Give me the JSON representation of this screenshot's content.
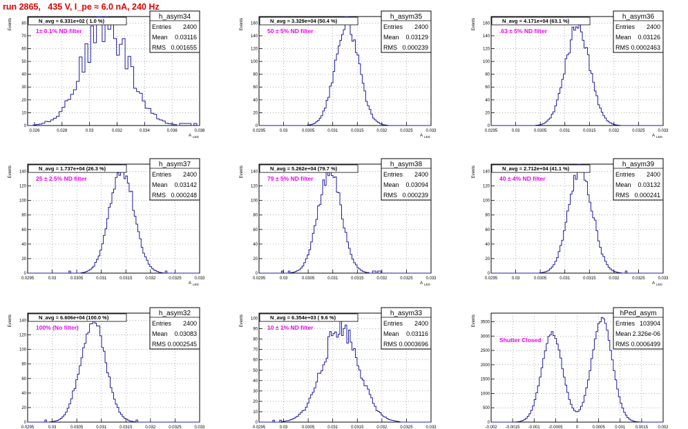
{
  "header": "run 2865,   435 V, I_pe ≈ 6.0 nA, 240 Hz",
  "panel_order": [
    "row-major",
    3,
    3
  ],
  "chart_data": [
    {
      "type": "histogram",
      "name": "h_asym34",
      "ylabel": "Events",
      "xlabel": "A",
      "xlabel_sub": "LED",
      "xlim": [
        0.0255,
        0.038
      ],
      "ylim": [
        0,
        85
      ],
      "xticks": [
        "0.026",
        "0.028",
        "0.03",
        "0.032",
        "0.034",
        "0.036",
        "0.038"
      ],
      "xtickvals": [
        0.026,
        0.028,
        0.03,
        0.032,
        0.034,
        0.036,
        0.038
      ],
      "yticks": [
        0,
        10,
        20,
        30,
        40,
        50,
        60,
        70,
        80
      ],
      "stats": {
        "Entries": "2400",
        "Mean": "0.03116",
        "RMS": "0.001655"
      },
      "navg": "N_avg = 6.331e+02 ( 1.0 %)",
      "filter_label": "1± 0.1% ND filter",
      "mean": 0.03116,
      "sigma": 0.001655,
      "peak": 80,
      "noise": 0.22,
      "seed": 34,
      "bins": 60
    },
    {
      "type": "histogram",
      "name": "h_asym35",
      "ylabel": "Events",
      "xlabel": "A",
      "xlabel_sub": "LED",
      "xlim": [
        0.0295,
        0.033
      ],
      "ylim": [
        0,
        170
      ],
      "xticks": [
        "0.0295",
        "0.03",
        "0.0305",
        "0.031",
        "0.0315",
        "0.032",
        "0.0325",
        "0.033"
      ],
      "xtickvals": [
        0.0295,
        0.03,
        0.0305,
        0.031,
        0.0315,
        0.032,
        0.0325,
        0.033
      ],
      "yticks": [
        0,
        20,
        40,
        60,
        80,
        100,
        120,
        140,
        160
      ],
      "stats": {
        "Entries": "2400",
        "Mean": "0.03129",
        "RMS": "0.000239"
      },
      "navg": "N_avg = 3.329e+04 (50.4 %)",
      "filter_label": "50 ± 5% ND filter",
      "mean": 0.03129,
      "sigma": 0.000239,
      "peak": 160,
      "noise": 0.08,
      "seed": 35,
      "bins": 100
    },
    {
      "type": "histogram",
      "name": "h_asym36",
      "ylabel": "Events",
      "xlabel": "A",
      "xlabel_sub": "LED",
      "xlim": [
        0.0295,
        0.033
      ],
      "ylim": [
        0,
        170
      ],
      "xticks": [
        "0.0295",
        "0.03",
        "0.0305",
        "0.031",
        "0.0315",
        "0.032",
        "0.0325",
        "0.033"
      ],
      "xtickvals": [
        0.0295,
        0.03,
        0.0305,
        0.031,
        0.0315,
        0.032,
        0.0325,
        0.033
      ],
      "yticks": [
        0,
        20,
        40,
        60,
        80,
        100,
        120,
        140,
        160
      ],
      "stats": {
        "Entries": "2400",
        "Mean": "0.03126",
        "RMS": "0.0002463"
      },
      "navg": "N_avg = 4.171e+04 (63.1 %)",
      "filter_label": ".63 ± 5% ND filter",
      "mean": 0.03126,
      "sigma": 0.0002463,
      "peak": 155,
      "noise": 0.08,
      "seed": 36,
      "bins": 100
    },
    {
      "type": "histogram",
      "name": "h_asym37",
      "ylabel": "Events",
      "xlabel": "A",
      "xlabel_sub": "LED",
      "xlim": [
        0.0295,
        0.033
      ],
      "ylim": [
        0,
        150
      ],
      "xticks": [
        "0.0295",
        "0.03",
        "0.0305",
        "0.031",
        "0.0315",
        "0.032",
        "0.0325",
        "0.033"
      ],
      "xtickvals": [
        0.0295,
        0.03,
        0.0305,
        0.031,
        0.0315,
        0.032,
        0.0325,
        0.033
      ],
      "yticks": [
        0,
        20,
        40,
        60,
        80,
        100,
        120,
        140
      ],
      "stats": {
        "Entries": "2400",
        "Mean": "0.03142",
        "RMS": "0.000248"
      },
      "navg": "N_avg = 1.737e+04 (26.3 %)",
      "filter_label": "25 ± 2.5% ND filter",
      "mean": 0.03142,
      "sigma": 0.000248,
      "peak": 145,
      "noise": 0.08,
      "seed": 37,
      "bins": 100
    },
    {
      "type": "histogram",
      "name": "h_asym38",
      "ylabel": "Events",
      "xlabel": "A",
      "xlabel_sub": "LED",
      "xlim": [
        0.0295,
        0.033
      ],
      "ylim": [
        0,
        150
      ],
      "xticks": [
        "0.0295",
        "0.03",
        "0.0305",
        "0.031",
        "0.0315",
        "0.032",
        "0.0325",
        "0.033"
      ],
      "xtickvals": [
        0.0295,
        0.03,
        0.0305,
        0.031,
        0.0315,
        0.032,
        0.0325,
        0.033
      ],
      "yticks": [
        0,
        20,
        40,
        60,
        80,
        100,
        120,
        140
      ],
      "stats": {
        "Entries": "2400",
        "Mean": "0.03094",
        "RMS": "0.000239"
      },
      "navg": "N_avg = 5.262e+04 (79.7 %)",
      "filter_label": "79 ± 5% ND filter",
      "mean": 0.03094,
      "sigma": 0.000239,
      "peak": 140,
      "noise": 0.08,
      "seed": 38,
      "bins": 100
    },
    {
      "type": "histogram",
      "name": "h_asym39",
      "ylabel": "Events",
      "xlabel": "A",
      "xlabel_sub": "LED",
      "xlim": [
        0.0295,
        0.033
      ],
      "ylim": [
        0,
        150
      ],
      "xticks": [
        "0.0295",
        "0.03",
        "0.0305",
        "0.031",
        "0.0315",
        "0.032",
        "0.0325",
        "0.033"
      ],
      "xtickvals": [
        0.0295,
        0.03,
        0.0305,
        0.031,
        0.0315,
        0.032,
        0.0325,
        0.033
      ],
      "yticks": [
        0,
        20,
        40,
        60,
        80,
        100,
        120,
        140
      ],
      "stats": {
        "Entries": "2400",
        "Mean": "0.03132",
        "RMS": "0.000241"
      },
      "navg": "N_avg = 2.712e+04 (41.1 %)",
      "filter_label": "40 ± 4% ND filter",
      "mean": 0.03132,
      "sigma": 0.000241,
      "peak": 145,
      "noise": 0.08,
      "seed": 39,
      "bins": 100
    },
    {
      "type": "histogram",
      "name": "h_asym32",
      "ylabel": "Events",
      "xlabel": "A",
      "xlabel_sub": "LED",
      "xlim": [
        0.0295,
        0.033
      ],
      "ylim": [
        0,
        150
      ],
      "xticks": [
        "0.0295",
        "0.03",
        "0.0305",
        "0.031",
        "0.0315",
        "0.032",
        "0.0325",
        "0.033"
      ],
      "xtickvals": [
        0.0295,
        0.03,
        0.0305,
        0.031,
        0.0315,
        0.032,
        0.0325,
        0.033
      ],
      "yticks": [
        0,
        20,
        40,
        60,
        80,
        100,
        120,
        140
      ],
      "stats": {
        "Entries": "2400",
        "Mean": "0.03083",
        "RMS": "0.0002545"
      },
      "navg": "N_avg = 6.606e+04 (100.0 %)",
      "filter_label": "100% (No filter)",
      "mean": 0.03083,
      "sigma": 0.0002545,
      "peak": 140,
      "noise": 0.08,
      "seed": 32,
      "bins": 100
    },
    {
      "type": "histogram",
      "name": "h_asym33",
      "ylabel": "Events",
      "xlabel": "A",
      "xlabel_sub": "LED",
      "xlim": [
        0.0295,
        0.033
      ],
      "ylim": [
        0,
        105
      ],
      "xticks": [
        "0.0295",
        "0.03",
        "0.0305",
        "0.031",
        "0.0315",
        "0.032",
        "0.0325",
        "0.033"
      ],
      "xtickvals": [
        0.0295,
        0.03,
        0.0305,
        0.031,
        0.0315,
        0.032,
        0.0325,
        0.033
      ],
      "yticks": [
        0,
        10,
        20,
        30,
        40,
        50,
        60,
        70,
        80,
        90,
        100
      ],
      "stats": {
        "Entries": "2400",
        "Mean": "0.03116",
        "RMS": "0.0003696"
      },
      "navg": "N_avg = 6.354e+03 ( 9.6 %)",
      "filter_label": "10 ± 1% ND filter",
      "mean": 0.03116,
      "sigma": 0.0003696,
      "peak": 92,
      "noise": 0.12,
      "seed": 33,
      "bins": 100
    },
    {
      "type": "histogram",
      "name": "hPed_asym",
      "ylabel": "Events",
      "xlabel": "",
      "xlabel_sub": "",
      "xlim": [
        -0.002,
        0.002
      ],
      "ylim": [
        0,
        3800
      ],
      "xticks": [
        "-0.002",
        "-0.0015",
        "-0.001",
        "-0.0005",
        "0",
        "0.0005",
        "0.001",
        "0.0015",
        "0.002"
      ],
      "xtickvals": [
        -0.002,
        -0.0015,
        -0.001,
        -0.0005,
        0,
        0.0005,
        0.001,
        0.0015,
        0.002
      ],
      "yticks": [
        0,
        500,
        1000,
        1500,
        2000,
        2500,
        3000,
        3500
      ],
      "stats": {
        "Entries": "103904",
        "Mean": "2.326e-06",
        "RMS": "0.0006499"
      },
      "navg": "",
      "filter_label": "Shutter Closed",
      "bimodal": [
        {
          "mean": -0.00058,
          "sigma": 0.00024,
          "peak": 3100
        },
        {
          "mean": 0.00058,
          "sigma": 0.00024,
          "peak": 3600
        }
      ],
      "noise": 0.02,
      "seed": 31,
      "bins": 100
    }
  ]
}
